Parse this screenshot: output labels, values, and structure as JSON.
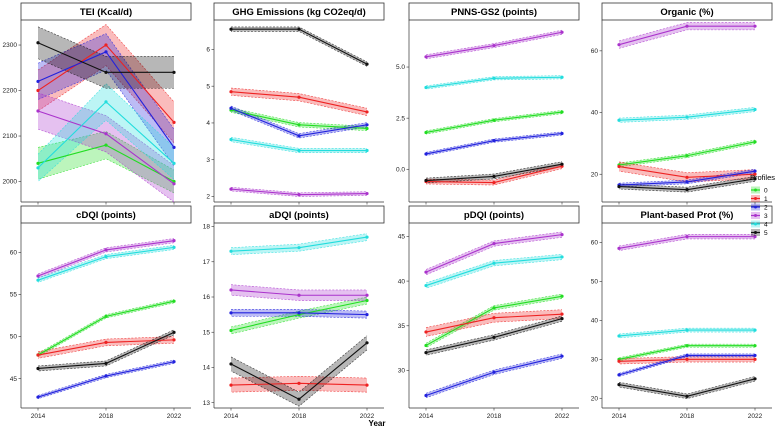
{
  "chart_data": {
    "type": "line",
    "layout": "faceted",
    "xlabel": "Year",
    "x": [
      2014,
      2018,
      2022
    ],
    "x_tick_labels": [
      "2014",
      "2018",
      "2022"
    ],
    "legend": {
      "title": "Profiles",
      "placement": "right",
      "entries": [
        {
          "name": "0",
          "color": "#22dd22"
        },
        {
          "name": "1",
          "color": "#ee2222"
        },
        {
          "name": "2",
          "color": "#2222dd"
        },
        {
          "name": "3",
          "color": "#aa33cc"
        },
        {
          "name": "4",
          "color": "#22dddd"
        },
        {
          "name": "5",
          "color": "#111111"
        }
      ]
    },
    "panels": [
      {
        "title": "TEI (Kcal/d)",
        "ylim": [
          1955,
          2355
        ],
        "yticks": [
          2000,
          2100,
          2200,
          2300
        ],
        "series": [
          {
            "name": "0",
            "values": [
              2040,
              2080,
              2000
            ],
            "band": [
              35,
              30,
              25
            ]
          },
          {
            "name": "1",
            "values": [
              2200,
              2300,
              2130
            ],
            "band": [
              45,
              45,
              45
            ]
          },
          {
            "name": "2",
            "values": [
              2220,
              2285,
              2075
            ],
            "band": [
              40,
              40,
              40
            ]
          },
          {
            "name": "3",
            "values": [
              2155,
              2105,
              1995
            ],
            "band": [
              40,
              40,
              40
            ]
          },
          {
            "name": "4",
            "values": [
              2030,
              2175,
              2040
            ],
            "band": [
              30,
              40,
              35
            ]
          },
          {
            "name": "5",
            "values": [
              2305,
              2240,
              2240
            ],
            "band": [
              35,
              35,
              35
            ]
          }
        ]
      },
      {
        "title": "GHG Emissions (kg CO2eq/d)",
        "ylim": [
          1.85,
          6.8
        ],
        "yticks": [
          2,
          3,
          4,
          5,
          6
        ],
        "series": [
          {
            "name": "0",
            "values": [
              4.35,
              3.95,
              3.85
            ],
            "band": [
              0.06,
              0.06,
              0.06
            ]
          },
          {
            "name": "1",
            "values": [
              4.85,
              4.7,
              4.3
            ],
            "band": [
              0.1,
              0.1,
              0.1
            ]
          },
          {
            "name": "2",
            "values": [
              4.4,
              3.65,
              3.95
            ],
            "band": [
              0.06,
              0.06,
              0.06
            ]
          },
          {
            "name": "3",
            "values": [
              2.2,
              2.05,
              2.08
            ],
            "band": [
              0.05,
              0.05,
              0.05
            ]
          },
          {
            "name": "4",
            "values": [
              3.55,
              3.25,
              3.25
            ],
            "band": [
              0.06,
              0.06,
              0.06
            ]
          },
          {
            "name": "5",
            "values": [
              6.55,
              6.55,
              5.6
            ],
            "band": [
              0.06,
              0.06,
              0.06
            ]
          }
        ]
      },
      {
        "title": "PNNS-GS2 (points)",
        "ylim": [
          -1.6,
          7.3
        ],
        "yticks": [
          0.0,
          2.5,
          5.0
        ],
        "ytick_labels": [
          "0.0",
          "2.5",
          "5.0"
        ],
        "series": [
          {
            "name": "0",
            "values": [
              1.8,
              2.4,
              2.8
            ],
            "band": [
              0.08,
              0.08,
              0.08
            ]
          },
          {
            "name": "1",
            "values": [
              -0.6,
              -0.65,
              0.15
            ],
            "band": [
              0.12,
              0.12,
              0.12
            ]
          },
          {
            "name": "2",
            "values": [
              0.75,
              1.4,
              1.75
            ],
            "band": [
              0.08,
              0.08,
              0.08
            ]
          },
          {
            "name": "3",
            "values": [
              5.5,
              6.05,
              6.7
            ],
            "band": [
              0.1,
              0.1,
              0.1
            ]
          },
          {
            "name": "4",
            "values": [
              4.0,
              4.45,
              4.5
            ],
            "band": [
              0.08,
              0.08,
              0.08
            ]
          },
          {
            "name": "5",
            "values": [
              -0.55,
              -0.35,
              0.25
            ],
            "band": [
              0.12,
              0.12,
              0.12
            ]
          }
        ]
      },
      {
        "title": "Organic (%)",
        "ylim": [
          11,
          70
        ],
        "yticks": [
          20,
          40,
          60
        ],
        "series": [
          {
            "name": "0",
            "values": [
              23,
              26,
              30.5
            ],
            "band": [
              0.6,
              0.6,
              0.6
            ]
          },
          {
            "name": "1",
            "values": [
              22.5,
              19,
              20
            ],
            "band": [
              1.5,
              1.5,
              1.5
            ]
          },
          {
            "name": "2",
            "values": [
              16.5,
              17.5,
              21
            ],
            "band": [
              0.6,
              0.6,
              0.6
            ]
          },
          {
            "name": "3",
            "values": [
              62,
              68,
              68
            ],
            "band": [
              1.2,
              1.2,
              1.2
            ]
          },
          {
            "name": "4",
            "values": [
              37.5,
              38.5,
              41
            ],
            "band": [
              0.7,
              0.7,
              0.7
            ]
          },
          {
            "name": "5",
            "values": [
              16,
              15,
              18.5
            ],
            "band": [
              0.8,
              0.8,
              0.8
            ]
          }
        ]
      },
      {
        "title": "cDQI (points)",
        "ylim": [
          41.5,
          63.5
        ],
        "yticks": [
          45,
          50,
          55,
          60
        ],
        "series": [
          {
            "name": "0",
            "values": [
              47.8,
              52.4,
              54.2
            ],
            "band": [
              0.2,
              0.2,
              0.2
            ]
          },
          {
            "name": "1",
            "values": [
              47.8,
              49.3,
              49.6
            ],
            "band": [
              0.4,
              0.4,
              0.4
            ]
          },
          {
            "name": "2",
            "values": [
              42.8,
              45.3,
              47
            ],
            "band": [
              0.2,
              0.2,
              0.2
            ]
          },
          {
            "name": "3",
            "values": [
              57.2,
              60.3,
              61.4
            ],
            "band": [
              0.25,
              0.25,
              0.25
            ]
          },
          {
            "name": "4",
            "values": [
              56.7,
              59.5,
              60.6
            ],
            "band": [
              0.25,
              0.25,
              0.25
            ]
          },
          {
            "name": "5",
            "values": [
              46.2,
              46.8,
              50.5
            ],
            "band": [
              0.3,
              0.3,
              0.3
            ]
          }
        ]
      },
      {
        "title": "aDQI (points)",
        "ylim": [
          12.85,
          18.1
        ],
        "yticks": [
          13,
          14,
          15,
          16,
          17,
          18
        ],
        "series": [
          {
            "name": "0",
            "values": [
              15.05,
              15.5,
              15.9
            ],
            "band": [
              0.1,
              0.1,
              0.1
            ]
          },
          {
            "name": "1",
            "values": [
              13.5,
              13.55,
              13.5
            ],
            "band": [
              0.2,
              0.2,
              0.2
            ]
          },
          {
            "name": "2",
            "values": [
              15.55,
              15.55,
              15.5
            ],
            "band": [
              0.1,
              0.1,
              0.1
            ]
          },
          {
            "name": "3",
            "values": [
              16.2,
              16.05,
              16.05
            ],
            "band": [
              0.15,
              0.15,
              0.15
            ]
          },
          {
            "name": "4",
            "values": [
              17.3,
              17.4,
              17.7
            ],
            "band": [
              0.1,
              0.1,
              0.1
            ]
          },
          {
            "name": "5",
            "values": [
              14.1,
              13.1,
              14.7
            ],
            "band": [
              0.2,
              0.2,
              0.2
            ]
          }
        ]
      },
      {
        "title": "pDQI (points)",
        "ylim": [
          25.8,
          46.5
        ],
        "yticks": [
          30,
          35,
          40,
          45
        ],
        "series": [
          {
            "name": "0",
            "values": [
              32.8,
              37,
              38.3
            ],
            "band": [
              0.25,
              0.25,
              0.25
            ]
          },
          {
            "name": "1",
            "values": [
              34.3,
              35.9,
              36.3
            ],
            "band": [
              0.5,
              0.5,
              0.5
            ]
          },
          {
            "name": "2",
            "values": [
              27.2,
              29.8,
              31.6
            ],
            "band": [
              0.25,
              0.25,
              0.25
            ]
          },
          {
            "name": "3",
            "values": [
              41,
              44.2,
              45.2
            ],
            "band": [
              0.3,
              0.3,
              0.3
            ]
          },
          {
            "name": "4",
            "values": [
              39.5,
              42,
              42.7
            ],
            "band": [
              0.3,
              0.3,
              0.3
            ]
          },
          {
            "name": "5",
            "values": [
              32,
              33.7,
              35.8
            ],
            "band": [
              0.3,
              0.3,
              0.3
            ]
          }
        ]
      },
      {
        "title": "Plant-based Prot (%)",
        "ylim": [
          17.5,
          65
        ],
        "yticks": [
          20,
          30,
          40,
          50,
          60
        ],
        "series": [
          {
            "name": "0",
            "values": [
              30,
              33.5,
              33.5
            ],
            "band": [
              0.4,
              0.4,
              0.4
            ]
          },
          {
            "name": "1",
            "values": [
              29.5,
              30,
              30
            ],
            "band": [
              0.7,
              0.7,
              0.7
            ]
          },
          {
            "name": "2",
            "values": [
              26,
              31,
              31
            ],
            "band": [
              0.4,
              0.4,
              0.4
            ]
          },
          {
            "name": "3",
            "values": [
              58.5,
              61.5,
              61.5
            ],
            "band": [
              0.6,
              0.6,
              0.6
            ]
          },
          {
            "name": "4",
            "values": [
              36,
              37.5,
              37.5
            ],
            "band": [
              0.5,
              0.5,
              0.5
            ]
          },
          {
            "name": "5",
            "values": [
              23.5,
              20.5,
              25
            ],
            "band": [
              0.6,
              0.6,
              0.6
            ]
          }
        ]
      }
    ]
  }
}
